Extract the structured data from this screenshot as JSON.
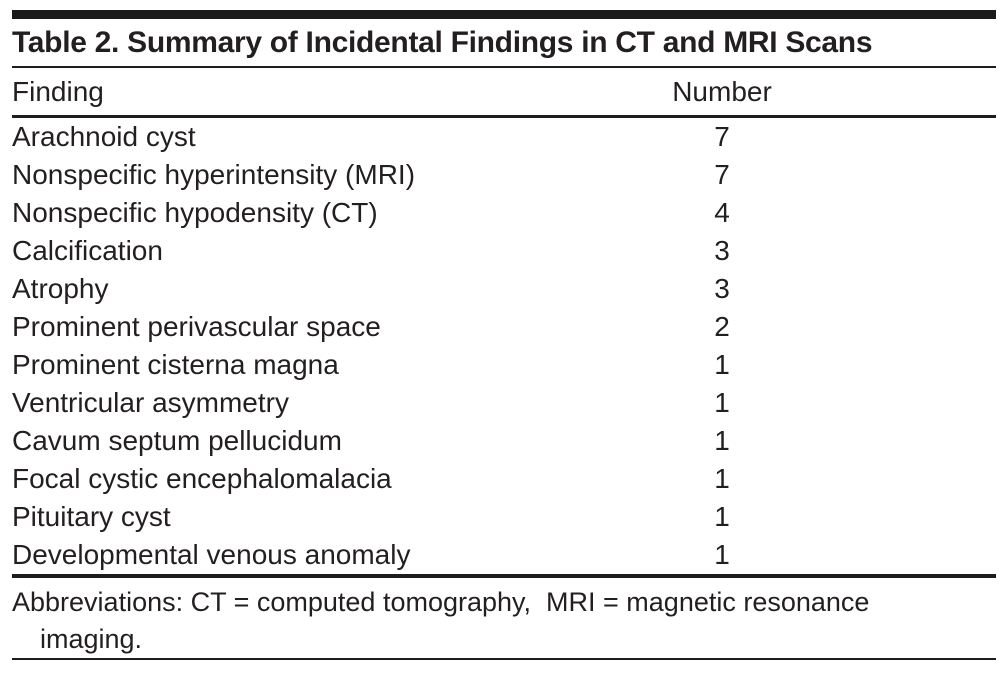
{
  "page": {
    "title": "Table 2. Summary of Incidental Findings in CT and MRI Scans"
  },
  "table": {
    "columns": [
      {
        "label": "Finding"
      },
      {
        "label": "Number"
      }
    ],
    "rows": [
      {
        "finding": "Arachnoid cyst",
        "number": "7"
      },
      {
        "finding": "Nonspecific hyperintensity (MRI)",
        "number": "7"
      },
      {
        "finding": "Nonspecific hypodensity (CT)",
        "number": "4"
      },
      {
        "finding": "Calcification",
        "number": "3"
      },
      {
        "finding": "Atrophy",
        "number": "3"
      },
      {
        "finding": "Prominent perivascular space",
        "number": "2"
      },
      {
        "finding": "Prominent cisterna magna",
        "number": "1"
      },
      {
        "finding": "Ventricular asymmetry",
        "number": "1"
      },
      {
        "finding": "Cavum septum pellucidum",
        "number": "1"
      },
      {
        "finding": "Focal cystic encephalomalacia",
        "number": "1"
      },
      {
        "finding": "Pituitary cyst",
        "number": "1"
      },
      {
        "finding": "Developmental venous anomaly",
        "number": "1"
      }
    ]
  },
  "footnote": {
    "line1": "Abbreviations: CT = computed tomography,  MRI = magnetic resonance",
    "line2": "imaging."
  },
  "colors": {
    "text": "#231f20",
    "rule": "#1d1d1b",
    "top_bar": "#1a1a1a",
    "background": "#ffffff"
  }
}
